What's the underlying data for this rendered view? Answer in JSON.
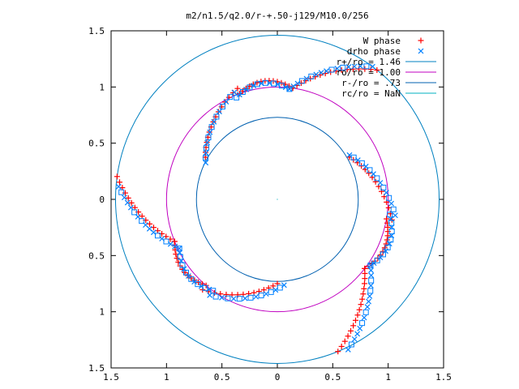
{
  "chart_data": {
    "type": "scatter",
    "title": "m2/n1.5/q2.0/r-+.50-j129/M10.0/256",
    "xlabel": "",
    "ylabel": "",
    "xlim": [
      -1.5,
      1.5
    ],
    "ylim": [
      -1.5,
      1.5
    ],
    "x_ticks": [
      -1.5,
      -1,
      -0.5,
      0,
      0.5,
      1,
      1.5
    ],
    "x_tick_labels": [
      "1.5",
      "1",
      "0.5",
      "0",
      "0.5",
      "1",
      "1.5"
    ],
    "y_ticks": [
      1.5,
      1,
      0.5,
      0,
      -0.5,
      -1,
      -1.5
    ],
    "y_tick_labels": [
      "1.5",
      "1",
      "0.5",
      "0",
      "0.5",
      "1",
      "1.5"
    ],
    "grid": false,
    "legend_position": "top-right",
    "series": [
      {
        "name": "W phase",
        "kind": "points",
        "marker": "plus",
        "color": "#ff0000"
      },
      {
        "name": "drho phase",
        "kind": "points",
        "marker": "cross",
        "color": "#0080ff"
      },
      {
        "name": "r+/ro = 1.46",
        "kind": "circle",
        "r": 1.46,
        "color": "#0080c0"
      },
      {
        "name": "ro/ro = 1.00",
        "kind": "circle",
        "r": 1.0,
        "color": "#c000c0"
      },
      {
        "name": "r-/ro = .73",
        "kind": "circle",
        "r": 0.73,
        "color": "#0060b0"
      },
      {
        "name": "rc/ro = NaN",
        "kind": "circle",
        "r": null,
        "color": "#00b0c0"
      }
    ],
    "spiral_arms": {
      "w_phase_rotation_deg": [
        90,
        210,
        330
      ],
      "drho_phase_rotation_deg": [
        93,
        213,
        333
      ]
    }
  }
}
